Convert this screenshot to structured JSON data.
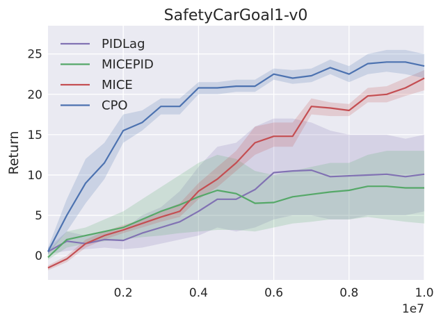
{
  "chart_data": {
    "type": "line",
    "title": "SafetyCarGoal1-v0",
    "xlabel": "",
    "ylabel": "Return",
    "x_offset_label": "1e7",
    "xlim": [
      0.0,
      1.0
    ],
    "ylim": [
      -3,
      28.5
    ],
    "xticks": [
      0.2,
      0.4,
      0.6,
      0.8,
      1.0
    ],
    "xtick_labels": [
      "0.2",
      "0.4",
      "0.6",
      "0.8",
      "1.0"
    ],
    "yticks": [
      0,
      5,
      10,
      15,
      20,
      25
    ],
    "ytick_labels": [
      "0",
      "5",
      "10",
      "15",
      "20",
      "25"
    ],
    "grid": true,
    "legend_position": "top-left",
    "x": [
      0.0,
      0.05,
      0.1,
      0.15,
      0.2,
      0.25,
      0.3,
      0.35,
      0.4,
      0.45,
      0.5,
      0.55,
      0.6,
      0.65,
      0.7,
      0.75,
      0.8,
      0.85,
      0.9,
      0.95,
      1.0
    ],
    "series": [
      {
        "name": "PIDLag",
        "color": "#8172b3",
        "values": [
          0.5,
          1.8,
          1.5,
          2.0,
          1.9,
          2.8,
          3.5,
          4.2,
          5.5,
          7.0,
          7.0,
          8.2,
          10.3,
          10.5,
          10.6,
          9.8,
          9.9,
          10.0,
          10.1,
          9.8,
          10.1
        ],
        "lower": [
          0.2,
          0.6,
          0.8,
          1.0,
          0.8,
          1.0,
          1.5,
          2.0,
          2.5,
          3.5,
          3.0,
          3.5,
          4.5,
          5.0,
          5.0,
          4.5,
          4.5,
          5.0,
          5.0,
          5.0,
          5.5
        ],
        "upper": [
          1.0,
          3.0,
          2.5,
          3.0,
          3.2,
          5.0,
          6.0,
          8.0,
          11.0,
          13.5,
          14.0,
          16.0,
          17.0,
          17.0,
          16.5,
          15.5,
          15.0,
          15.0,
          15.0,
          14.5,
          15.0
        ]
      },
      {
        "name": "MICEPID",
        "color": "#55a868",
        "values": [
          -0.2,
          2.0,
          2.5,
          3.0,
          3.5,
          4.5,
          5.5,
          6.3,
          7.3,
          8.1,
          7.7,
          6.5,
          6.6,
          7.3,
          7.6,
          7.9,
          8.1,
          8.6,
          8.6,
          8.4,
          8.4
        ],
        "lower": [
          -0.5,
          1.0,
          1.5,
          1.8,
          2.0,
          2.3,
          2.5,
          2.8,
          3.0,
          3.2,
          3.2,
          3.0,
          3.5,
          4.0,
          4.2,
          4.5,
          4.5,
          4.8,
          4.5,
          4.2,
          4.0
        ],
        "upper": [
          0.5,
          3.0,
          3.5,
          4.5,
          5.5,
          7.0,
          8.5,
          10.0,
          11.5,
          12.5,
          12.0,
          10.5,
          10.0,
          10.5,
          11.0,
          11.5,
          11.5,
          12.5,
          13.0,
          13.0,
          13.0
        ]
      },
      {
        "name": "MICE",
        "color": "#c44e52",
        "values": [
          -1.5,
          -0.4,
          1.5,
          2.5,
          3.2,
          4.0,
          4.8,
          5.5,
          8.0,
          9.5,
          11.5,
          14.0,
          14.8,
          14.8,
          18.5,
          18.3,
          18.0,
          19.8,
          20.0,
          20.8,
          22.0
        ],
        "lower": [
          -1.8,
          -0.8,
          1.0,
          2.0,
          2.8,
          3.5,
          4.2,
          4.8,
          7.0,
          8.5,
          10.5,
          12.5,
          13.5,
          13.5,
          17.5,
          17.3,
          17.3,
          19.0,
          19.0,
          19.8,
          20.5
        ],
        "upper": [
          -1.2,
          0.0,
          2.0,
          3.0,
          3.8,
          4.5,
          5.5,
          6.5,
          9.0,
          11.0,
          13.0,
          16.0,
          16.5,
          16.5,
          19.5,
          19.0,
          18.8,
          20.8,
          21.0,
          22.0,
          23.0
        ]
      },
      {
        "name": "CPO",
        "color": "#4c72b0",
        "values": [
          0.5,
          5.0,
          9.0,
          11.5,
          15.5,
          16.5,
          18.5,
          18.5,
          20.8,
          20.8,
          21.0,
          21.0,
          22.5,
          22.0,
          22.3,
          23.3,
          22.5,
          23.8,
          24.0,
          24.0,
          23.5
        ],
        "lower": [
          0.2,
          3.0,
          6.5,
          9.5,
          14.0,
          15.5,
          17.5,
          17.5,
          20.0,
          20.0,
          20.3,
          20.3,
          21.8,
          21.3,
          21.5,
          22.5,
          21.5,
          22.5,
          22.8,
          22.5,
          22.0
        ],
        "upper": [
          1.0,
          7.0,
          12.0,
          14.0,
          17.5,
          18.0,
          19.5,
          19.5,
          21.5,
          21.5,
          21.8,
          21.8,
          23.2,
          23.0,
          23.2,
          24.3,
          23.5,
          25.0,
          25.5,
          25.5,
          25.0
        ]
      }
    ]
  }
}
